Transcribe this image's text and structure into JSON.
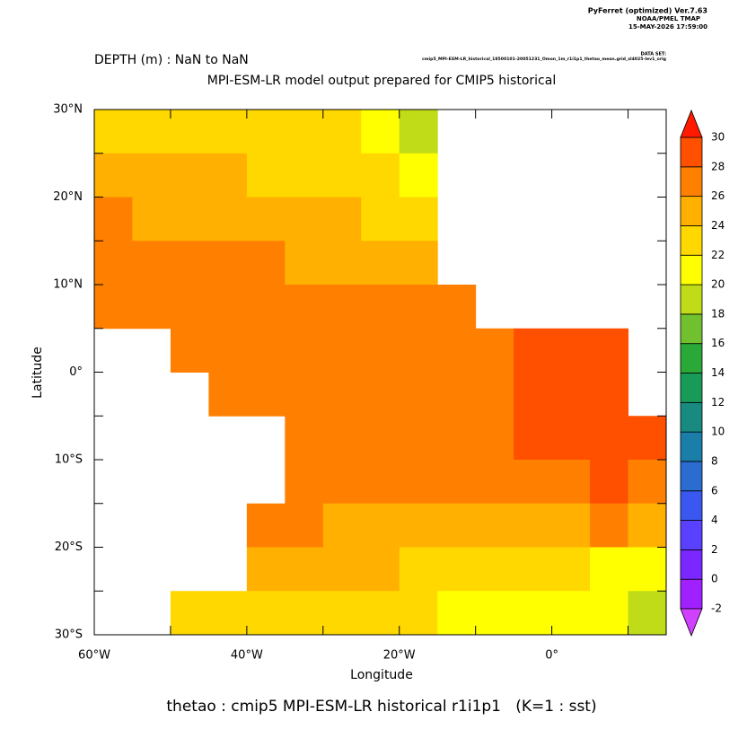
{
  "header": {
    "program": "PyFerret (optimized) Ver.7.63",
    "org": "NOAA/PMEL TMAP",
    "timestamp": "15-MAY-2026 17:59:00"
  },
  "chart_data": {
    "type": "heatmap",
    "subtitle": "DEPTH (m) : NaN to NaN",
    "dataset_label": "DATA SET:",
    "dataset": "cmip5_MPI-ESM-LR_historical_18500101-20051231_Omon_1m_r1i1p1_thetao_mean.grid_sl4025-lev1_orig",
    "title": "MPI-ESM-LR model output prepared for CMIP5 historical",
    "x_label": "Longitude",
    "y_label": "Latitude",
    "caption": "thetao : cmip5 MPI-ESM-LR historical r1i1p1   (K=1 : sst)",
    "xlim": [
      -60,
      15
    ],
    "ylim": [
      -30,
      30
    ],
    "xticks": [
      {
        "value": -60,
        "label": "60°W"
      },
      {
        "value": -40,
        "label": "40°W"
      },
      {
        "value": -20,
        "label": "20°W"
      },
      {
        "value": 0,
        "label": "0°"
      }
    ],
    "x_minor_ticks": [
      -50,
      -30,
      -10,
      10
    ],
    "yticks": [
      {
        "value": 30,
        "label": "30°N"
      },
      {
        "value": 20,
        "label": "20°N"
      },
      {
        "value": 10,
        "label": "10°N"
      },
      {
        "value": 0,
        "label": "0°"
      },
      {
        "value": -10,
        "label": "10°S"
      },
      {
        "value": -20,
        "label": "20°S"
      },
      {
        "value": -30,
        "label": "30°S"
      }
    ],
    "y_minor_ticks": [
      25,
      15,
      5,
      -5,
      -15,
      -25
    ],
    "cell_size": 5,
    "x": [
      -57.5,
      -52.5,
      -47.5,
      -42.5,
      -37.5,
      -32.5,
      -27.5,
      -22.5,
      -17.5,
      -12.5,
      -7.5,
      -2.5,
      2.5,
      7.5,
      12.5
    ],
    "y": [
      27.5,
      22.5,
      17.5,
      12.5,
      7.5,
      2.5,
      -2.5,
      -7.5,
      -12.5,
      -17.5,
      -22.5,
      -27.5
    ],
    "values": [
      [
        23,
        23,
        23,
        23,
        22,
        22,
        22,
        21,
        19,
        null,
        null,
        null,
        null,
        null,
        null
      ],
      [
        24,
        24,
        24,
        24,
        23,
        23,
        23,
        22,
        20,
        null,
        null,
        null,
        null,
        null,
        null
      ],
      [
        26,
        25,
        25,
        25,
        24,
        24,
        24,
        23,
        22,
        null,
        null,
        null,
        null,
        null,
        null
      ],
      [
        27,
        27,
        26,
        26,
        26,
        25,
        25,
        24,
        24,
        null,
        null,
        null,
        null,
        null,
        null
      ],
      [
        27,
        27,
        27,
        27,
        27,
        27,
        27,
        27,
        27,
        27,
        null,
        null,
        null,
        null,
        null
      ],
      [
        null,
        null,
        27,
        27,
        27,
        27,
        27,
        27,
        27,
        27,
        27,
        28,
        28,
        28,
        null
      ],
      [
        null,
        null,
        null,
        27,
        27,
        27,
        27,
        27,
        27,
        27,
        27,
        28,
        28,
        29,
        null
      ],
      [
        null,
        null,
        null,
        null,
        null,
        27,
        27,
        27,
        27,
        27,
        27,
        28,
        28,
        28,
        28
      ],
      [
        null,
        null,
        null,
        null,
        null,
        27,
        26,
        26,
        26,
        26,
        27,
        27,
        27,
        28,
        27
      ],
      [
        null,
        null,
        null,
        null,
        26,
        26,
        25,
        25,
        25,
        25,
        25,
        25,
        25,
        26,
        25
      ],
      [
        null,
        null,
        null,
        null,
        25,
        25,
        24,
        24,
        23,
        23,
        23,
        22,
        22,
        21,
        21
      ],
      [
        null,
        null,
        23,
        23,
        23,
        23,
        22,
        22,
        22,
        21,
        21,
        20,
        20,
        20,
        19
      ]
    ],
    "colorbar": {
      "levels": [
        -2,
        0,
        2,
        4,
        6,
        8,
        10,
        12,
        14,
        16,
        18,
        20,
        22,
        24,
        26,
        28,
        30
      ],
      "colors": [
        "#a020ff",
        "#7a28ff",
        "#5a40ff",
        "#3a58f0",
        "#2a6cd0",
        "#1a7ea8",
        "#188a80",
        "#189a58",
        "#2aa838",
        "#70c030",
        "#c0dc18",
        "#ffff00",
        "#ffd800",
        "#ffb000",
        "#ff8000",
        "#ff5000"
      ],
      "under_color": "#d040ff",
      "over_color": "#ff1a00"
    }
  }
}
